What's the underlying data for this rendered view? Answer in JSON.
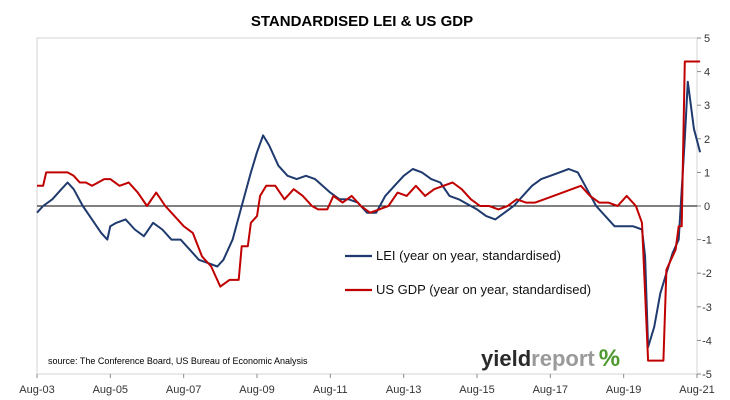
{
  "chart_data": {
    "type": "line",
    "title": "STANDARDISED LEI & US GDP",
    "source": "source: The Conference Board, US Bureau of Economic Analysis",
    "brand": {
      "part1": "yield",
      "part2": "report",
      "symbol": "%"
    },
    "x_ticks": [
      "Aug-03",
      "Aug-05",
      "Aug-07",
      "Aug-09",
      "Aug-11",
      "Aug-13",
      "Aug-15",
      "Aug-17",
      "Aug-19",
      "Aug-21"
    ],
    "x_range": [
      "Aug-03",
      "Aug-21"
    ],
    "y_ticks": [
      5,
      4,
      3,
      2,
      1,
      0,
      -1,
      -2,
      -3,
      -4,
      -5
    ],
    "ylim": [
      -5,
      5
    ],
    "y_axis_side": "right",
    "legend_placement": "center",
    "series": [
      {
        "name": "LEI (year on year, standardised)",
        "color": "#1f3a6e",
        "points": [
          [
            "Aug-03",
            -0.2
          ],
          [
            "Oct-03",
            0.0
          ],
          [
            "Jan-04",
            0.2
          ],
          [
            "Apr-04",
            0.5
          ],
          [
            "Jun-04",
            0.7
          ],
          [
            "Aug-04",
            0.5
          ],
          [
            "Nov-04",
            0.0
          ],
          [
            "Feb-05",
            -0.4
          ],
          [
            "May-05",
            -0.8
          ],
          [
            "Jul-05",
            -1.0
          ],
          [
            "Aug-05",
            -0.6
          ],
          [
            "Oct-05",
            -0.5
          ],
          [
            "Jan-06",
            -0.4
          ],
          [
            "Apr-06",
            -0.7
          ],
          [
            "Jul-06",
            -0.9
          ],
          [
            "Oct-06",
            -0.5
          ],
          [
            "Jan-07",
            -0.7
          ],
          [
            "Apr-07",
            -1.0
          ],
          [
            "Jul-07",
            -1.0
          ],
          [
            "Oct-07",
            -1.3
          ],
          [
            "Jan-08",
            -1.6
          ],
          [
            "Apr-08",
            -1.7
          ],
          [
            "Jul-08",
            -1.8
          ],
          [
            "Sep-08",
            -1.6
          ],
          [
            "Dec-08",
            -1.0
          ],
          [
            "Mar-09",
            0.0
          ],
          [
            "Jun-09",
            1.0
          ],
          [
            "Aug-09",
            1.6
          ],
          [
            "Oct-09",
            2.1
          ],
          [
            "Dec-09",
            1.8
          ],
          [
            "Mar-10",
            1.2
          ],
          [
            "Jun-10",
            0.9
          ],
          [
            "Sep-10",
            0.8
          ],
          [
            "Dec-10",
            0.9
          ],
          [
            "Mar-11",
            0.8
          ],
          [
            "Aug-11",
            0.4
          ],
          [
            "Nov-11",
            0.2
          ],
          [
            "Feb-12",
            0.2
          ],
          [
            "May-12",
            0.1
          ],
          [
            "Aug-12",
            -0.2
          ],
          [
            "Nov-12",
            -0.2
          ],
          [
            "Feb-13",
            0.3
          ],
          [
            "May-13",
            0.6
          ],
          [
            "Aug-13",
            0.9
          ],
          [
            "Nov-13",
            1.1
          ],
          [
            "Feb-14",
            1.0
          ],
          [
            "May-14",
            0.8
          ],
          [
            "Aug-14",
            0.7
          ],
          [
            "Nov-14",
            0.3
          ],
          [
            "Feb-15",
            0.2
          ],
          [
            "Aug-15",
            -0.1
          ],
          [
            "Nov-15",
            -0.3
          ],
          [
            "Feb-16",
            -0.4
          ],
          [
            "May-16",
            -0.2
          ],
          [
            "Aug-16",
            0.0
          ],
          [
            "Nov-16",
            0.3
          ],
          [
            "Feb-17",
            0.6
          ],
          [
            "May-17",
            0.8
          ],
          [
            "Aug-17",
            0.9
          ],
          [
            "Nov-17",
            1.0
          ],
          [
            "Feb-18",
            1.1
          ],
          [
            "May-18",
            1.0
          ],
          [
            "Aug-18",
            0.5
          ],
          [
            "Nov-18",
            0.0
          ],
          [
            "Feb-19",
            -0.3
          ],
          [
            "May-19",
            -0.6
          ],
          [
            "Aug-19",
            -0.6
          ],
          [
            "Nov-19",
            -0.6
          ],
          [
            "Feb-20",
            -0.7
          ],
          [
            "Mar-20",
            -1.5
          ],
          [
            "Apr-20",
            -4.2
          ],
          [
            "Jun-20",
            -3.6
          ],
          [
            "Aug-20",
            -2.6
          ],
          [
            "Oct-20",
            -2.0
          ],
          [
            "Dec-20",
            -1.4
          ],
          [
            "Feb-21",
            -1.0
          ],
          [
            "Apr-21",
            2.0
          ],
          [
            "May-21",
            3.7
          ],
          [
            "Jul-21",
            2.3
          ],
          [
            "Sep-21",
            1.6
          ]
        ]
      },
      {
        "name": "US GDP (year on year, standardised)",
        "color": "#c00000",
        "points": [
          [
            "Aug-03",
            0.6
          ],
          [
            "Oct-03",
            0.6
          ],
          [
            "Nov-03",
            1.0
          ],
          [
            "Feb-04",
            1.0
          ],
          [
            "Jun-04",
            1.0
          ],
          [
            "Aug-04",
            0.9
          ],
          [
            "Oct-04",
            0.7
          ],
          [
            "Dec-04",
            0.7
          ],
          [
            "Feb-05",
            0.6
          ],
          [
            "Apr-05",
            0.7
          ],
          [
            "Jun-05",
            0.8
          ],
          [
            "Aug-05",
            0.8
          ],
          [
            "Nov-05",
            0.6
          ],
          [
            "Feb-06",
            0.7
          ],
          [
            "May-06",
            0.4
          ],
          [
            "Aug-06",
            0.0
          ],
          [
            "Nov-06",
            0.4
          ],
          [
            "Feb-07",
            0.0
          ],
          [
            "May-07",
            -0.3
          ],
          [
            "Aug-07",
            -0.6
          ],
          [
            "Nov-07",
            -0.8
          ],
          [
            "Feb-08",
            -1.5
          ],
          [
            "May-08",
            -1.8
          ],
          [
            "Aug-08",
            -2.4
          ],
          [
            "Nov-08",
            -2.2
          ],
          [
            "Feb-09",
            -2.2
          ],
          [
            "Mar-09",
            -1.2
          ],
          [
            "May-09",
            -1.2
          ],
          [
            "Jun-09",
            -0.5
          ],
          [
            "Aug-09",
            -0.3
          ],
          [
            "Sep-09",
            0.3
          ],
          [
            "Nov-09",
            0.6
          ],
          [
            "Feb-10",
            0.6
          ],
          [
            "May-10",
            0.2
          ],
          [
            "Aug-10",
            0.5
          ],
          [
            "Nov-10",
            0.3
          ],
          [
            "Feb-11",
            0.0
          ],
          [
            "Apr-11",
            -0.1
          ],
          [
            "Jul-11",
            -0.1
          ],
          [
            "Sep-11",
            0.3
          ],
          [
            "Dec-11",
            0.1
          ],
          [
            "Mar-12",
            0.3
          ],
          [
            "Jun-12",
            0.0
          ],
          [
            "Sep-12",
            -0.2
          ],
          [
            "Dec-12",
            -0.1
          ],
          [
            "Mar-13",
            0.0
          ],
          [
            "Jun-13",
            0.4
          ],
          [
            "Sep-13",
            0.3
          ],
          [
            "Dec-13",
            0.6
          ],
          [
            "Mar-14",
            0.3
          ],
          [
            "Jun-14",
            0.5
          ],
          [
            "Sep-14",
            0.6
          ],
          [
            "Dec-14",
            0.7
          ],
          [
            "Mar-15",
            0.5
          ],
          [
            "Jun-15",
            0.2
          ],
          [
            "Sep-15",
            0.0
          ],
          [
            "Dec-15",
            0.0
          ],
          [
            "Mar-16",
            -0.1
          ],
          [
            "Jun-16",
            0.0
          ],
          [
            "Sep-16",
            0.2
          ],
          [
            "Dec-16",
            0.1
          ],
          [
            "Mar-17",
            0.1
          ],
          [
            "Jun-17",
            0.2
          ],
          [
            "Sep-17",
            0.3
          ],
          [
            "Dec-17",
            0.4
          ],
          [
            "Mar-18",
            0.5
          ],
          [
            "Jun-18",
            0.6
          ],
          [
            "Sep-18",
            0.3
          ],
          [
            "Dec-18",
            0.1
          ],
          [
            "Mar-19",
            0.1
          ],
          [
            "Jun-19",
            0.0
          ],
          [
            "Sep-19",
            0.3
          ],
          [
            "Dec-19",
            0.0
          ],
          [
            "Feb-20",
            -0.5
          ],
          [
            "Apr-20",
            -4.6
          ],
          [
            "Sep-20",
            -4.6
          ],
          [
            "Oct-20",
            -1.9
          ],
          [
            "Jan-21",
            -1.3
          ],
          [
            "Feb-21",
            -0.6
          ],
          [
            "Mar-21",
            -0.6
          ],
          [
            "Apr-21",
            4.3
          ],
          [
            "Sep-21",
            4.3
          ]
        ]
      }
    ]
  }
}
